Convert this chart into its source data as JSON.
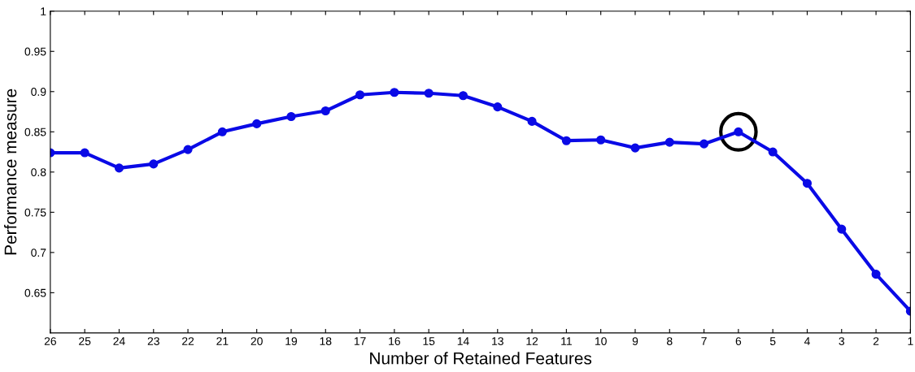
{
  "chart_data": {
    "type": "line",
    "xlabel": "Number of Retained Features",
    "ylabel": "Performance measure",
    "x": [
      26,
      25,
      24,
      23,
      22,
      21,
      20,
      19,
      18,
      17,
      16,
      15,
      14,
      13,
      12,
      11,
      10,
      9,
      8,
      7,
      6,
      5,
      4,
      3,
      2,
      1
    ],
    "series": [
      {
        "color": "#0a0ae6",
        "values": [
          0.824,
          0.824,
          0.805,
          0.81,
          0.828,
          0.85,
          0.86,
          0.869,
          0.876,
          0.896,
          0.899,
          0.898,
          0.895,
          0.881,
          0.863,
          0.839,
          0.84,
          0.83,
          0.837,
          0.835,
          0.85,
          0.825,
          0.786,
          0.729,
          0.673,
          0.627
        ]
      }
    ],
    "xlim": [
      26,
      1
    ],
    "xticks": [
      26,
      25,
      24,
      23,
      22,
      21,
      20,
      19,
      18,
      17,
      16,
      15,
      14,
      13,
      12,
      11,
      10,
      9,
      8,
      7,
      6,
      5,
      4,
      3,
      2,
      1
    ],
    "ylim": [
      0.6,
      1
    ],
    "yticks": [
      0.65,
      0.7,
      0.75,
      0.8,
      0.85,
      0.9,
      0.95,
      1
    ],
    "grid": false,
    "legend": false,
    "marker": "circle",
    "line_style": "solid"
  }
}
